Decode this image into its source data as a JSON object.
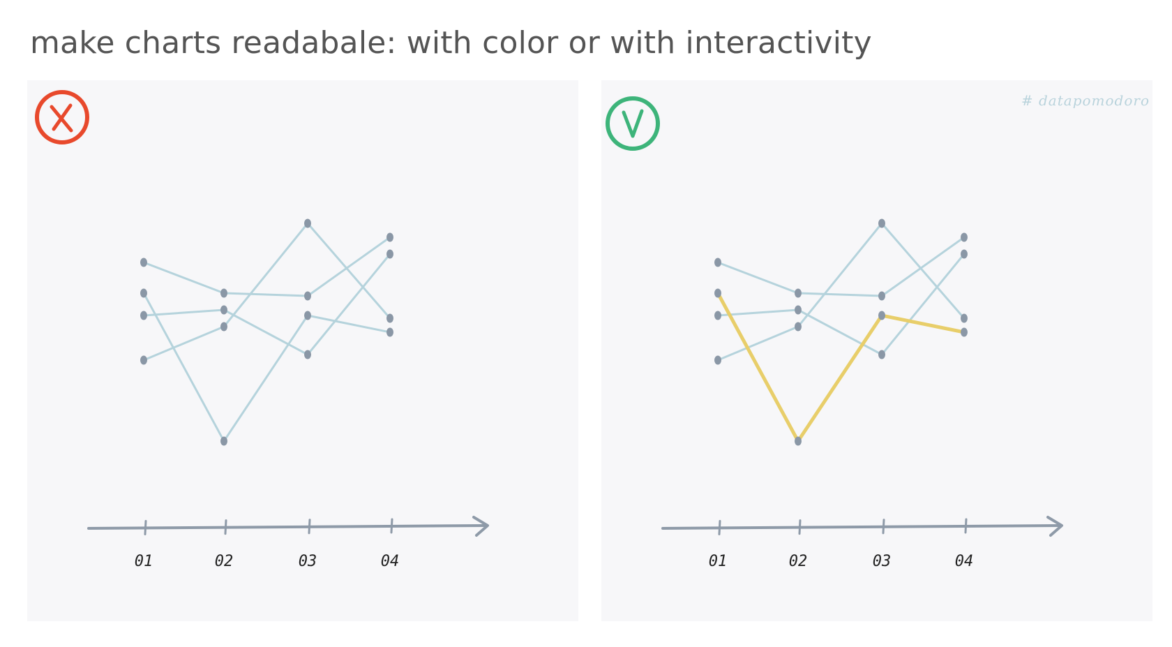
{
  "title": "make charts readabale: with color or with interactivity",
  "watermark": "# datapomodoro",
  "colors": {
    "muted_line": "#b5d3dc",
    "point": "#8a97a6",
    "axis": "#8e9aa8",
    "highlight": "#e8ce6a",
    "bad_mark": "#e8492c",
    "good_mark": "#3db47a",
    "panel_bg": "#f7f7f9"
  },
  "panels": [
    {
      "mark_icon": "cross-circle-icon",
      "mark_color": "#e8492c",
      "highlight_series": null
    },
    {
      "mark_icon": "check-circle-icon",
      "mark_color": "#3db47a",
      "highlight_series": 1
    }
  ],
  "chart_data": [
    {
      "type": "line",
      "categories": [
        "01",
        "02",
        "03",
        "04"
      ],
      "ylim": [
        0,
        10
      ],
      "series": [
        {
          "values": [
            7.6,
            6.5,
            6.4,
            8.5
          ]
        },
        {
          "values": [
            6.5,
            1.2,
            5.7,
            5.1
          ]
        },
        {
          "values": [
            5.7,
            5.9,
            4.3,
            7.9
          ]
        },
        {
          "values": [
            4.1,
            5.3,
            9.0,
            5.6
          ]
        }
      ]
    },
    {
      "type": "line",
      "categories": [
        "01",
        "02",
        "03",
        "04"
      ],
      "ylim": [
        0,
        10
      ],
      "series": [
        {
          "values": [
            7.6,
            6.5,
            6.4,
            8.5
          ]
        },
        {
          "values": [
            6.5,
            1.2,
            5.7,
            5.1
          ]
        },
        {
          "values": [
            5.7,
            5.9,
            4.3,
            7.9
          ]
        },
        {
          "values": [
            4.1,
            5.3,
            9.0,
            5.6
          ]
        }
      ]
    }
  ]
}
